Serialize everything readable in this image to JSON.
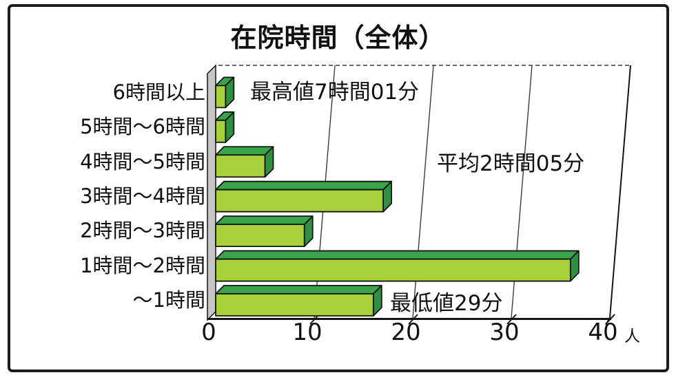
{
  "chart_data": {
    "type": "bar",
    "orientation": "horizontal",
    "style": "3d-extruded",
    "title": "在院時間（全体）",
    "categories": [
      "6時間以上",
      "5時間～6時間",
      "4時間～5時間",
      "3時間～4時間",
      "2時間～3時間",
      "1時間～2時間",
      "～1時間"
    ],
    "values": [
      1,
      1,
      5,
      17,
      9,
      36,
      16
    ],
    "xlabel": "",
    "ylabel": "",
    "xlim": [
      0,
      40
    ],
    "x_ticks": [
      0,
      10,
      20,
      30,
      40
    ],
    "x_unit": "人",
    "grid": true,
    "legend": "none",
    "annotations": [
      {
        "id": "max",
        "text": "最高値7時間01分"
      },
      {
        "id": "avg",
        "text": "平均2時間05分"
      },
      {
        "id": "min",
        "text": "最低値29分"
      }
    ],
    "colors": {
      "bar_front": "#a6d13a",
      "bar_top": "#3aa44b",
      "bar_side": "#2e9040",
      "wall": "#c6c6c6",
      "outline": "#141414",
      "gridline": "#3a3a3a",
      "frame": "#1c1c1c",
      "background": "#ffffff"
    }
  }
}
